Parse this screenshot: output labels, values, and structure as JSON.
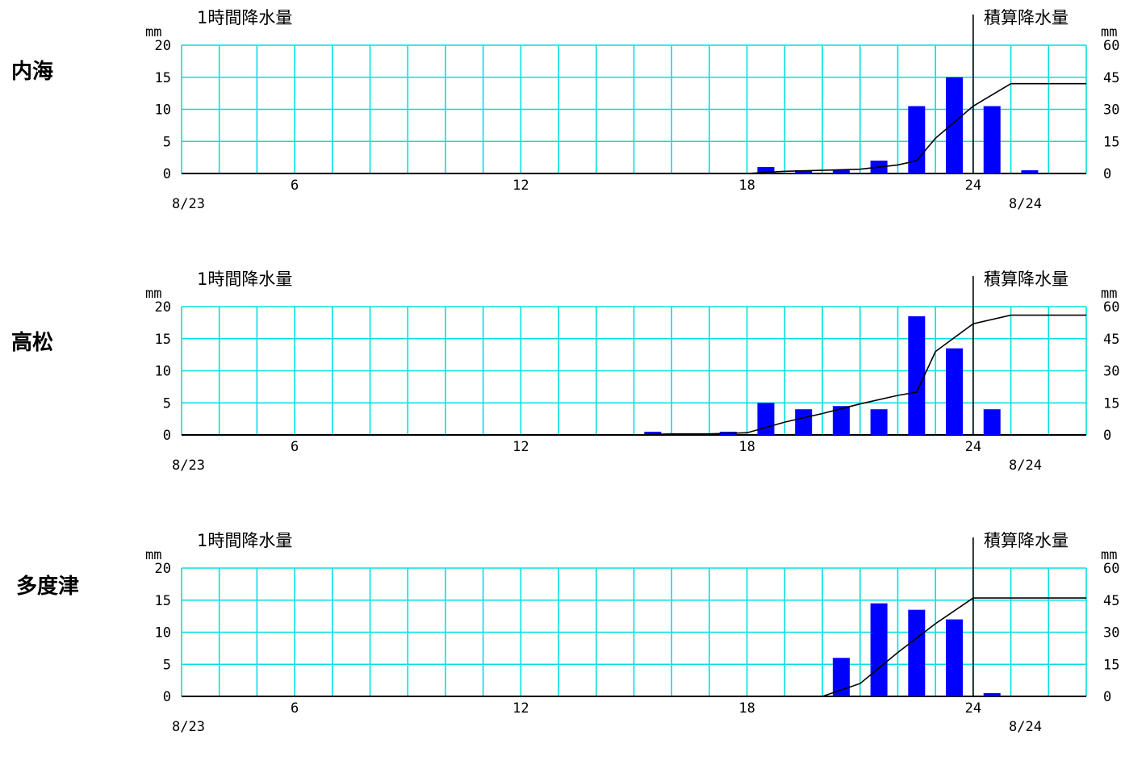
{
  "chart_data": [
    {
      "type": "bar",
      "station": "内海",
      "left_title": "1時間降水量",
      "right_title": "積算降水量",
      "left_unit": "mm",
      "right_unit": "mm",
      "ylim": [
        0,
        20
      ],
      "y2lim": [
        0,
        60
      ],
      "left_ticks": [
        "20",
        "15",
        "10",
        "5",
        "0"
      ],
      "right_ticks": [
        "60",
        "45",
        "30",
        "15",
        "0"
      ],
      "x_ticks": [
        {
          "hour": 6,
          "label": "6"
        },
        {
          "hour": 12,
          "label": "12"
        },
        {
          "hour": 18,
          "label": "18"
        },
        {
          "hour": 24,
          "label": "24"
        }
      ],
      "date_start": "8/23",
      "date_end": "8/24",
      "grid": true,
      "series": [
        {
          "kind": "bar",
          "x": [
            19,
            20,
            21,
            22,
            23,
            24,
            25,
            26
          ],
          "values": [
            1,
            0.5,
            0.5,
            2,
            10.5,
            15,
            10.5,
            0.5
          ]
        },
        {
          "kind": "line",
          "x": [
            18,
            19,
            20,
            21,
            22,
            22.5,
            23,
            24,
            25,
            26,
            27
          ],
          "values": [
            0,
            1,
            1.5,
            2,
            4,
            6,
            16.5,
            31.5,
            42,
            42,
            42
          ]
        }
      ]
    },
    {
      "type": "bar",
      "station": "高松",
      "left_title": "1時間降水量",
      "right_title": "積算降水量",
      "left_unit": "mm",
      "right_unit": "mm",
      "ylim": [
        0,
        20
      ],
      "y2lim": [
        0,
        60
      ],
      "left_ticks": [
        "20",
        "15",
        "10",
        "5",
        "0"
      ],
      "right_ticks": [
        "60",
        "45",
        "30",
        "15",
        "0"
      ],
      "x_ticks": [
        {
          "hour": 6,
          "label": "6"
        },
        {
          "hour": 12,
          "label": "12"
        },
        {
          "hour": 18,
          "label": "18"
        },
        {
          "hour": 24,
          "label": "24"
        }
      ],
      "date_start": "8/23",
      "date_end": "8/24",
      "grid": true,
      "series": [
        {
          "kind": "bar",
          "x": [
            16,
            18,
            19,
            20,
            21,
            22,
            23,
            24,
            25
          ],
          "values": [
            0.5,
            0.5,
            5,
            4,
            4.5,
            4,
            18.5,
            13.5,
            4
          ]
        },
        {
          "kind": "line",
          "x": [
            15,
            16,
            17,
            18,
            19,
            20,
            21,
            22,
            22.5,
            23,
            24,
            25,
            26,
            27
          ],
          "values": [
            0,
            0.5,
            0.5,
            1,
            6,
            10,
            14.5,
            18.5,
            20,
            39,
            52,
            56,
            56,
            56
          ]
        }
      ]
    },
    {
      "type": "bar",
      "station": "多度津",
      "left_title": "1時間降水量",
      "right_title": "積算降水量",
      "left_unit": "mm",
      "right_unit": "mm",
      "ylim": [
        0,
        20
      ],
      "y2lim": [
        0,
        60
      ],
      "left_ticks": [
        "20",
        "15",
        "10",
        "5",
        "0"
      ],
      "right_ticks": [
        "60",
        "45",
        "30",
        "15",
        "0"
      ],
      "x_ticks": [
        {
          "hour": 6,
          "label": "6"
        },
        {
          "hour": 12,
          "label": "12"
        },
        {
          "hour": 18,
          "label": "18"
        },
        {
          "hour": 24,
          "label": "24"
        }
      ],
      "date_start": "8/23",
      "date_end": "8/24",
      "grid": true,
      "series": [
        {
          "kind": "bar",
          "x": [
            21,
            22,
            23,
            24,
            25
          ],
          "values": [
            6,
            14.5,
            13.5,
            12,
            0.5
          ]
        },
        {
          "kind": "line",
          "x": [
            20,
            21,
            22,
            23,
            24,
            25,
            26,
            27
          ],
          "values": [
            0,
            6,
            20.5,
            34,
            46,
            46,
            46,
            46
          ]
        }
      ]
    }
  ],
  "colors": {
    "grid": "#00e0e0",
    "bar": "#0000ff",
    "line": "#000000",
    "axis": "#000000"
  }
}
